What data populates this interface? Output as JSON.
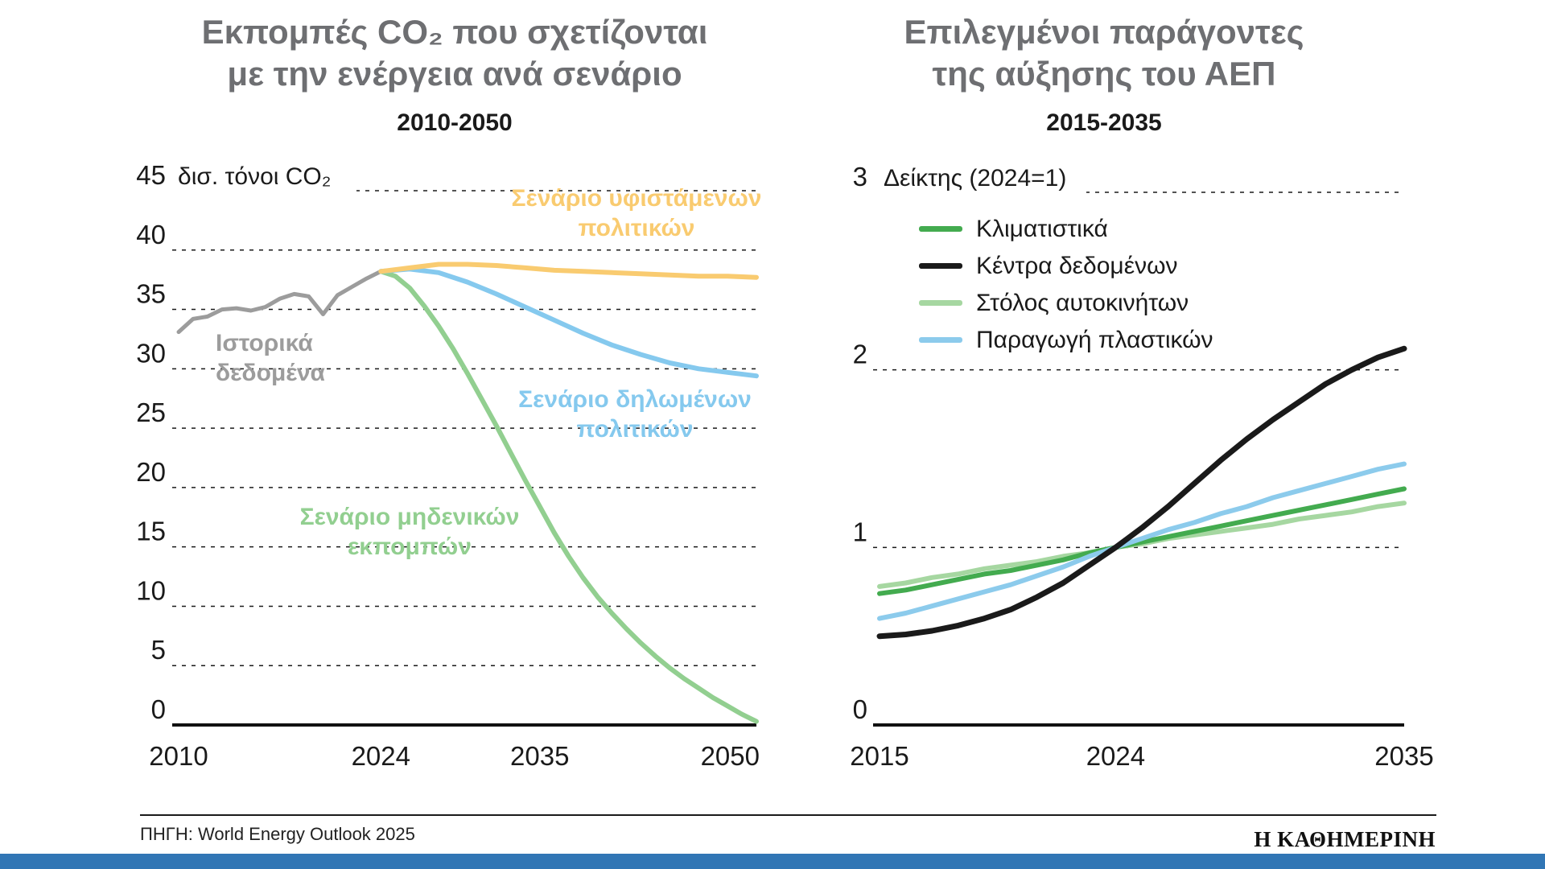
{
  "page": {
    "source": "ΠΗΓΗ: World Energy Outlook 2025",
    "logo_text": "Η ΚΑΘΗΜΕΡΙΝΗ",
    "accent_bar_color": "#3176B5",
    "background": "#FFFFFF"
  },
  "chart_data": [
    {
      "id": "co2-emissions-by-scenario",
      "type": "line",
      "title": [
        "Εκπομπές CO₂ που σχετίζονται",
        "με την ενέργεια ανά σενάριο"
      ],
      "subtitle": "2010-2050",
      "unit_label": "δισ. τόνοι CO₂",
      "xlabel": "",
      "ylabel": "δισ. τόνοι CO₂",
      "xlim": [
        2010,
        2050
      ],
      "ylim": [
        0,
        45
      ],
      "yticks": [
        0,
        5,
        10,
        15,
        20,
        25,
        30,
        35,
        40,
        45
      ],
      "xticks": [
        2010,
        2024,
        2035,
        2050
      ],
      "grid": "horizontal-dashed",
      "legend_position": "annotations-on-chart",
      "series": [
        {
          "name": "Ιστορικά δεδομένα",
          "color": "#9C9C9C",
          "x": [
            2010,
            2011,
            2012,
            2013,
            2014,
            2015,
            2016,
            2017,
            2018,
            2019,
            2020,
            2021,
            2022,
            2023,
            2024
          ],
          "values": [
            33.1,
            34.2,
            34.4,
            35.0,
            35.1,
            34.9,
            35.2,
            35.9,
            36.3,
            36.1,
            34.6,
            36.2,
            36.9,
            37.6,
            38.2
          ]
        },
        {
          "name": "Σενάριο μηδενικών εκπομπών",
          "color": "#92CF90",
          "x": [
            2024,
            2025,
            2026,
            2027,
            2028,
            2029,
            2030,
            2031,
            2032,
            2033,
            2034,
            2035,
            2036,
            2037,
            2038,
            2039,
            2040,
            2041,
            2042,
            2043,
            2044,
            2045,
            2046,
            2047,
            2048,
            2049,
            2050
          ],
          "values": [
            38.2,
            37.8,
            36.8,
            35.3,
            33.6,
            31.7,
            29.6,
            27.4,
            25.2,
            22.9,
            20.6,
            18.4,
            16.2,
            14.2,
            12.4,
            10.8,
            9.4,
            8.1,
            6.9,
            5.8,
            4.8,
            3.9,
            3.1,
            2.3,
            1.6,
            0.9,
            0.3
          ]
        },
        {
          "name": "Σενάριο δηλωμένων πολιτικών",
          "color": "#85C9EE",
          "x": [
            2024,
            2026,
            2028,
            2030,
            2032,
            2034,
            2036,
            2038,
            2040,
            2042,
            2044,
            2046,
            2048,
            2050
          ],
          "values": [
            38.2,
            38.4,
            38.1,
            37.3,
            36.3,
            35.2,
            34.1,
            33.0,
            32.0,
            31.2,
            30.5,
            30.0,
            29.7,
            29.4
          ]
        },
        {
          "name": "Σενάριο υφιστάμενων πολιτικών",
          "color": "#F9CB70",
          "x": [
            2024,
            2026,
            2028,
            2030,
            2032,
            2034,
            2036,
            2038,
            2040,
            2042,
            2044,
            2046,
            2048,
            2050
          ],
          "values": [
            38.2,
            38.5,
            38.8,
            38.8,
            38.7,
            38.5,
            38.3,
            38.2,
            38.1,
            38.0,
            37.9,
            37.8,
            37.8,
            37.7
          ]
        }
      ]
    },
    {
      "id": "gdp-growth-drivers",
      "type": "line",
      "title": [
        "Επιλεγμένοι παράγοντες",
        "της αύξησης του ΑΕΠ"
      ],
      "subtitle": "2015-2035",
      "unit_label": "Δείκτης (2024=1)",
      "xlabel": "",
      "ylabel": "Δείκτης (2024=1)",
      "xlim": [
        2015,
        2035
      ],
      "ylim": [
        0,
        3
      ],
      "yticks": [
        0,
        1,
        2,
        3
      ],
      "xticks": [
        2015,
        2024,
        2035
      ],
      "grid": "horizontal-dashed",
      "legend_position": "top-left-inside",
      "x": [
        2015,
        2016,
        2017,
        2018,
        2019,
        2020,
        2021,
        2022,
        2023,
        2024,
        2025,
        2026,
        2027,
        2028,
        2029,
        2030,
        2031,
        2032,
        2033,
        2034,
        2035
      ],
      "series": [
        {
          "name": "Κλιματιστικά",
          "color": "#43AB4F",
          "values": [
            0.74,
            0.76,
            0.79,
            0.82,
            0.85,
            0.87,
            0.9,
            0.93,
            0.97,
            1.0,
            1.03,
            1.06,
            1.09,
            1.12,
            1.15,
            1.18,
            1.21,
            1.24,
            1.27,
            1.3,
            1.33
          ]
        },
        {
          "name": "Κέντρα δεδομένων",
          "color": "#1A1A1A",
          "values": [
            0.5,
            0.51,
            0.53,
            0.56,
            0.6,
            0.65,
            0.72,
            0.8,
            0.9,
            1.0,
            1.11,
            1.23,
            1.36,
            1.49,
            1.61,
            1.72,
            1.82,
            1.92,
            2.0,
            2.07,
            2.12
          ]
        },
        {
          "name": "Στόλος αυτοκινήτων",
          "color": "#A6D7A1",
          "values": [
            0.78,
            0.8,
            0.83,
            0.85,
            0.88,
            0.9,
            0.92,
            0.95,
            0.97,
            1.0,
            1.02,
            1.05,
            1.07,
            1.09,
            1.11,
            1.13,
            1.16,
            1.18,
            1.2,
            1.23,
            1.25
          ]
        },
        {
          "name": "Παραγωγή πλαστικών",
          "color": "#8CCBEC",
          "values": [
            0.6,
            0.63,
            0.67,
            0.71,
            0.75,
            0.79,
            0.84,
            0.89,
            0.95,
            1.0,
            1.05,
            1.1,
            1.14,
            1.19,
            1.23,
            1.28,
            1.32,
            1.36,
            1.4,
            1.44,
            1.47
          ]
        }
      ]
    }
  ]
}
